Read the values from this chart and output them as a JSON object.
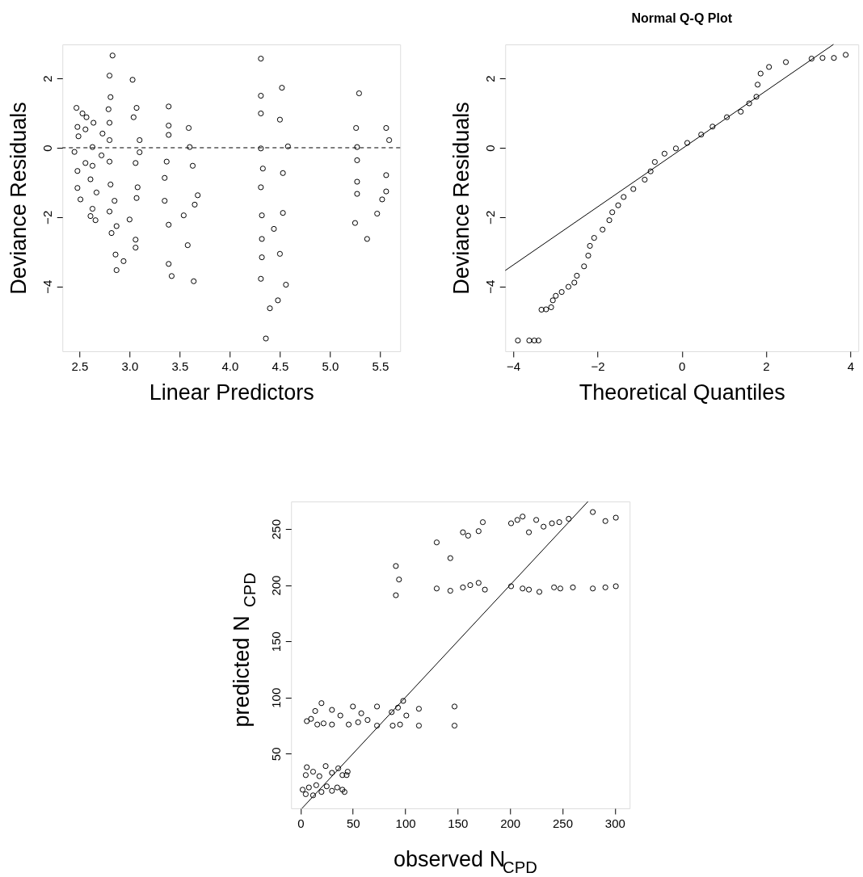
{
  "chart_data": [
    {
      "type": "scatter",
      "xlabel": "Linear Predictors",
      "ylabel": "Deviance Residuals",
      "xlim": [
        2.33,
        5.7
      ],
      "ylim": [
        -5.87,
        2.98
      ],
      "xticks": [
        2.5,
        {
          "value": 3,
          "label": "3.0"
        },
        3.5,
        {
          "value": 4,
          "label": "4.0"
        },
        4.5,
        {
          "value": 5,
          "label": "5.0"
        },
        5.5
      ],
      "yticks": [
        -4,
        -2,
        0,
        2
      ],
      "ref_lines": [
        {
          "axis": "y",
          "value": 0,
          "line_style": "dashed",
          "color": "#000000"
        }
      ],
      "series": [
        {
          "type": "scatter",
          "marker": "circle",
          "color": "#000000",
          "x": [
            2.47,
            2.53,
            2.57,
            2.48,
            2.56,
            2.64,
            2.73,
            2.49,
            2.63,
            2.45,
            2.56,
            2.63,
            2.72,
            2.48,
            2.61,
            2.48,
            2.67,
            2.51,
            2.63,
            2.61,
            2.66,
            2.83,
            3.03,
            2.8,
            3.07,
            2.81,
            3.04,
            2.79,
            3.1,
            2.8,
            3.1,
            2.8,
            3.06,
            2.8,
            3.08,
            2.81,
            3.07,
            2.85,
            3.0,
            2.8,
            2.87,
            3.06,
            2.82,
            3.06,
            2.86,
            2.94,
            2.87,
            3.39,
            3.59,
            3.39,
            3.6,
            3.39,
            3.63,
            3.37,
            3.68,
            3.35,
            3.65,
            3.35,
            3.54,
            3.39,
            3.58,
            3.39,
            3.64,
            3.42,
            4.31,
            4.52,
            4.31,
            4.5,
            4.31,
            4.58,
            4.31,
            4.53,
            4.33,
            4.53,
            4.31,
            4.32,
            4.44,
            4.32,
            4.5,
            4.32,
            4.56,
            4.31,
            4.48,
            4.4,
            4.36,
            5.29,
            5.56,
            5.26,
            5.59,
            5.27,
            5.56,
            5.27,
            5.56,
            5.27,
            5.52,
            5.27,
            5.47,
            5.25,
            5.37
          ],
          "values": [
            1.15,
            0.99,
            0.88,
            0.6,
            0.53,
            0.72,
            0.41,
            0.33,
            0.02,
            -0.12,
            -0.44,
            -0.52,
            -0.22,
            -0.67,
            -0.91,
            -1.16,
            -1.29,
            -1.49,
            -1.76,
            -1.97,
            -2.09,
            2.66,
            1.96,
            2.08,
            1.15,
            1.46,
            0.88,
            1.11,
            0.22,
            0.72,
            -0.13,
            0.22,
            -0.44,
            -0.4,
            -1.14,
            -1.06,
            -1.45,
            -1.53,
            -2.07,
            -1.84,
            -2.26,
            -2.65,
            -2.46,
            -2.88,
            -3.08,
            -3.27,
            -3.53,
            1.19,
            0.57,
            0.64,
            0.02,
            0.37,
            -0.52,
            -0.4,
            -1.37,
            -0.87,
            -1.64,
            -1.53,
            -1.95,
            -2.22,
            -2.81,
            -3.35,
            -3.85,
            -3.7,
            2.57,
            1.73,
            1.5,
            0.81,
            0.99,
            0.04,
            -0.02,
            -0.73,
            -0.6,
            -1.88,
            -1.14,
            -1.95,
            -2.34,
            -2.63,
            -3.06,
            -3.16,
            -3.95,
            -3.78,
            -4.4,
            -4.63,
            -5.5,
            1.57,
            0.57,
            0.57,
            0.22,
            0.02,
            -0.79,
            -0.36,
            -1.26,
            -0.98,
            -1.49,
            -1.33,
            -1.9,
            -2.17,
            -2.63
          ]
        }
      ]
    },
    {
      "type": "scatter",
      "title": "Normal Q-Q Plot",
      "xlabel": "Theoretical Quantiles",
      "ylabel": "Deviance Residuals",
      "xlim": [
        -4.19,
        4.19
      ],
      "ylim": [
        -5.87,
        2.98
      ],
      "xticks": [
        -4,
        -2,
        0,
        2,
        4
      ],
      "yticks": [
        -4,
        -2,
        0,
        2
      ],
      "series": [
        {
          "type": "scatter",
          "marker": "circle",
          "color": "#000000",
          "x": [
            -3.89,
            -3.62,
            -3.5,
            -3.4,
            -3.33,
            -3.22,
            -3.1,
            -3.06,
            -2.99,
            -2.85,
            -2.69,
            -2.55,
            -2.49,
            -2.32,
            -2.22,
            -2.18,
            -2.08,
            -1.88,
            -1.72,
            -1.65,
            -1.51,
            -1.38,
            -1.15,
            -0.88,
            -0.74,
            -0.64,
            -0.41,
            -0.14,
            0.13,
            0.46,
            0.73,
            1.07,
            1.4,
            1.6,
            1.77,
            1.8,
            1.87,
            2.07,
            2.47,
            3.08,
            3.34,
            3.61,
            3.89
          ],
          "values": [
            -5.56,
            -5.56,
            -5.56,
            -5.56,
            -4.67,
            -4.66,
            -4.6,
            -4.4,
            -4.27,
            -4.16,
            -4.01,
            -3.89,
            -3.69,
            -3.42,
            -3.11,
            -2.83,
            -2.6,
            -2.36,
            -2.09,
            -1.86,
            -1.66,
            -1.42,
            -1.19,
            -0.92,
            -0.68,
            -0.41,
            -0.17,
            -0.02,
            0.14,
            0.38,
            0.61,
            0.88,
            1.04,
            1.28,
            1.47,
            1.82,
            2.14,
            2.33,
            2.47,
            2.57,
            2.59,
            2.59,
            2.68
          ]
        },
        {
          "type": "line",
          "color": "#000000",
          "line_style": "solid",
          "x": [
            -4.19,
            3.6
          ],
          "values": [
            -3.54,
            2.98
          ]
        }
      ]
    },
    {
      "type": "scatter",
      "xlabel": "observed N$_{CPD}$",
      "ylabel": "predicted N$_{CPD}$",
      "xlim": [
        -9,
        314.2
      ],
      "ylim": [
        1.4,
        274.4
      ],
      "xticks": [
        0,
        50,
        100,
        150,
        200,
        250,
        300
      ],
      "yticks": [
        50,
        100,
        150,
        200,
        250
      ],
      "series": [
        {
          "type": "scatter",
          "marker": "circle",
          "color": "#000000",
          "x": [
            2,
            5,
            8,
            12,
            15,
            20,
            25,
            30,
            35,
            40,
            42,
            6,
            5,
            12,
            18,
            24,
            30,
            36,
            40,
            45,
            44,
            6,
            10,
            14,
            16,
            20,
            22,
            30,
            30,
            38,
            46,
            50,
            55,
            58,
            64,
            73,
            73,
            87,
            88,
            93,
            95,
            98,
            101,
            113,
            113,
            147,
            147,
            91,
            91,
            94,
            130,
            130,
            143,
            143,
            155,
            155,
            160,
            162,
            170,
            170,
            174,
            176,
            201,
            201,
            207,
            212,
            212,
            218,
            218,
            225,
            228,
            232,
            240,
            242,
            247,
            248,
            256,
            260,
            279,
            279,
            291,
            291,
            301,
            301
          ],
          "values": [
            18,
            14,
            20,
            13,
            22,
            16,
            21,
            17,
            20,
            18,
            16,
            38,
            31,
            34,
            30,
            39,
            33,
            37,
            31,
            34,
            31,
            79,
            81,
            88,
            76,
            95,
            77,
            89,
            76,
            84,
            76,
            92,
            78,
            86,
            80,
            92,
            75,
            87,
            75,
            91,
            76,
            97,
            84,
            90,
            75,
            92,
            75,
            217,
            191,
            205,
            238,
            197,
            224,
            195,
            247,
            198,
            244,
            200,
            248,
            202,
            256,
            196,
            255,
            199,
            258,
            261,
            197,
            247,
            196,
            258,
            194,
            252,
            255,
            198,
            256,
            197,
            259,
            198,
            265,
            197,
            257,
            198,
            260,
            199
          ]
        },
        {
          "type": "line",
          "color": "#000000",
          "line_style": "solid",
          "x": [
            1.4,
            274.4
          ],
          "values": [
            1.4,
            274.4
          ]
        }
      ]
    }
  ]
}
